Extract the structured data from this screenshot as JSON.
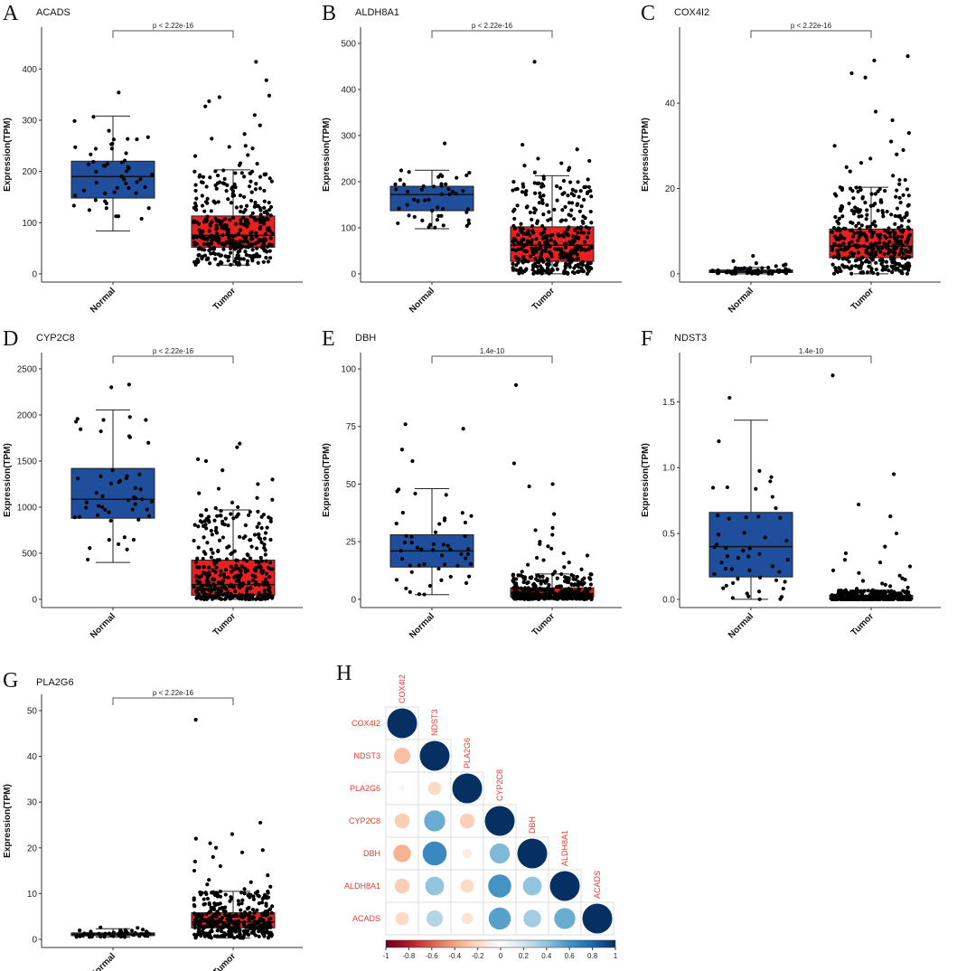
{
  "chart_data": [
    {
      "panel": "A",
      "type": "box",
      "title": "ACADS",
      "ylabel": "Expression(TPM)",
      "categories": [
        "Normal",
        "Tumor"
      ],
      "ylim": [
        0,
        450
      ],
      "yticks": [
        0,
        100,
        200,
        300,
        400
      ],
      "p_label": "p < 2.22e-16",
      "boxes": [
        {
          "group": "Normal",
          "whisker_low": 84,
          "q1": 148,
          "median": 190,
          "q3": 220,
          "whisker_high": 308,
          "outliers": [
            354
          ]
        },
        {
          "group": "Tumor",
          "whisker_low": 17,
          "q1": 52,
          "median": 75,
          "q3": 113,
          "whisker_high": 203,
          "outliers": [
            414,
            378,
            345,
            337,
            327,
            310,
            348,
            290,
            273,
            264,
            250,
            248,
            245,
            232,
            230,
            216,
            215,
            212
          ]
        }
      ]
    },
    {
      "panel": "B",
      "type": "box",
      "title": "ALDH8A1",
      "ylabel": "Expression(TPM)",
      "categories": [
        "Normal",
        "Tumor"
      ],
      "ylim": [
        0,
        500
      ],
      "yticks": [
        0,
        100,
        200,
        300,
        400,
        500
      ],
      "p_label": "p < 2.22e-16",
      "boxes": [
        {
          "group": "Normal",
          "whisker_low": 98,
          "q1": 137,
          "median": 172,
          "q3": 190,
          "whisker_high": 225,
          "outliers": [
            283
          ]
        },
        {
          "group": "Tumor",
          "whisker_low": 0,
          "q1": 27,
          "median": 62,
          "q3": 102,
          "whisker_high": 213,
          "outliers": [
            460,
            280,
            270,
            250,
            245,
            240,
            235,
            230,
            225,
            220
          ]
        }
      ]
    },
    {
      "panel": "C",
      "type": "box",
      "title": "COX4I2",
      "ylabel": "Expression(TPM)",
      "categories": [
        "Normal",
        "Tumor"
      ],
      "ylim": [
        0,
        54
      ],
      "yticks": [
        0,
        20,
        40
      ],
      "p_label": "p < 2.22e-16",
      "boxes": [
        {
          "group": "Normal",
          "whisker_low": 0,
          "q1": 0.3,
          "median": 0.6,
          "q3": 0.9,
          "whisker_high": 1.5,
          "outliers": [
            4.2,
            3,
            2.5,
            2.2,
            2,
            1.8
          ]
        },
        {
          "group": "Tumor",
          "whisker_low": 0,
          "q1": 3.8,
          "median": 6.5,
          "q3": 10.5,
          "whisker_high": 20.3,
          "outliers": [
            51,
            50,
            47,
            46,
            38,
            36,
            33,
            31,
            30,
            29,
            28,
            27,
            26,
            25,
            24,
            23,
            22,
            22,
            21
          ]
        }
      ]
    },
    {
      "panel": "D",
      "type": "box",
      "title": "CYP2C8",
      "ylabel": "Expression(TPM)",
      "categories": [
        "Normal",
        "Tumor"
      ],
      "ylim": [
        0,
        2500
      ],
      "yticks": [
        0,
        500,
        1000,
        1500,
        2000,
        2500
      ],
      "p_label": "p < 2.22e-16",
      "boxes": [
        {
          "group": "Normal",
          "whisker_low": 400,
          "q1": 880,
          "median": 1085,
          "q3": 1420,
          "whisker_high": 2055,
          "outliers": [
            2330,
            2300
          ]
        },
        {
          "group": "Tumor",
          "whisker_low": 0,
          "q1": 45,
          "median": 160,
          "q3": 425,
          "whisker_high": 970,
          "outliers": [
            1690,
            1650,
            1520,
            1500,
            1400,
            1300,
            1250,
            1200,
            1150,
            1100,
            1080,
            1050,
            1000,
            990
          ]
        }
      ]
    },
    {
      "panel": "E",
      "type": "box",
      "title": "DBH",
      "ylabel": "Expression(TPM)",
      "categories": [
        "Normal",
        "Tumor"
      ],
      "ylim": [
        0,
        100
      ],
      "yticks": [
        0,
        25,
        50,
        75,
        100
      ],
      "p_label": "1.4e-10",
      "boxes": [
        {
          "group": "Normal",
          "whisker_low": 2,
          "q1": 14,
          "median": 21,
          "q3": 28,
          "whisker_high": 48,
          "outliers": [
            76,
            74,
            65,
            60
          ]
        },
        {
          "group": "Tumor",
          "whisker_low": 0,
          "q1": 1,
          "median": 2.5,
          "q3": 5,
          "whisker_high": 11,
          "outliers": [
            93,
            59,
            50,
            49,
            37,
            31,
            30,
            28,
            25,
            24,
            23,
            22,
            20,
            19,
            18,
            17,
            16,
            15,
            14,
            13,
            12,
            12
          ]
        }
      ]
    },
    {
      "panel": "F",
      "type": "box",
      "title": "NDST3",
      "ylabel": "Expression(TPM)",
      "categories": [
        "Normal",
        "Tumor"
      ],
      "ylim": [
        0,
        1.75
      ],
      "yticks": [
        0.0,
        0.5,
        1.0,
        1.5
      ],
      "ytick_labels": [
        "0.0",
        "0.5",
        "1.0",
        "1.5"
      ],
      "p_label": "1.4e-10",
      "boxes": [
        {
          "group": "Normal",
          "whisker_low": 0,
          "q1": 0.17,
          "median": 0.4,
          "q3": 0.66,
          "whisker_high": 1.36,
          "outliers": [
            1.53
          ]
        },
        {
          "group": "Tumor",
          "whisker_low": 0,
          "q1": 0,
          "median": 0.01,
          "q3": 0.03,
          "whisker_high": 0.07,
          "outliers": [
            1.7,
            0.95,
            0.72,
            0.63,
            0.5,
            0.4,
            0.35,
            0.3,
            0.28,
            0.25,
            0.22,
            0.2,
            0.18,
            0.16,
            0.15,
            0.14,
            0.12,
            0.11,
            0.1,
            0.09,
            0.08
          ]
        }
      ]
    },
    {
      "panel": "G",
      "type": "box",
      "title": "PLA2G6",
      "ylabel": "Expression(TPM)",
      "categories": [
        "Normal",
        "Tumor"
      ],
      "ylim": [
        0,
        50
      ],
      "yticks": [
        0,
        10,
        20,
        30,
        40,
        50
      ],
      "p_label": "p < 2.22e-16",
      "boxes": [
        {
          "group": "Normal",
          "whisker_low": 0.5,
          "q1": 0.8,
          "median": 1.1,
          "q3": 1.4,
          "whisker_high": 2.3,
          "outliers": [
            2.6,
            2.5
          ]
        },
        {
          "group": "Tumor",
          "whisker_low": 0.3,
          "q1": 2.5,
          "median": 3.8,
          "q3": 5.8,
          "whisker_high": 10.5,
          "outliers": [
            48,
            25.5,
            23,
            22,
            21,
            20,
            19.5,
            19,
            18,
            17,
            16,
            15,
            14,
            13,
            12.5,
            12,
            11.5,
            11
          ]
        }
      ]
    },
    {
      "panel": "H",
      "type": "heatmap",
      "subtype": "correlation-lower-triangle",
      "labels": [
        "COX4I2",
        "NDST3",
        "PLA2G6",
        "CYP2C8",
        "DBH",
        "ALDH8A1",
        "ACADS"
      ],
      "matrix": [
        [
          1
        ],
        [
          -0.3,
          1
        ],
        [
          0.05,
          -0.2,
          1
        ],
        [
          -0.25,
          0.5,
          -0.25,
          1
        ],
        [
          -0.35,
          0.65,
          -0.1,
          0.45,
          1
        ],
        [
          -0.25,
          0.4,
          -0.2,
          0.6,
          0.4,
          1
        ],
        [
          -0.2,
          0.3,
          -0.15,
          0.55,
          0.35,
          0.5,
          1
        ]
      ],
      "colorbar": {
        "range": [
          -1,
          1
        ],
        "ticks": [
          "-1",
          "-0.8",
          "-0.6",
          "-0.4",
          "-0.2",
          "0",
          "0.2",
          "0.4",
          "0.6",
          "0.8",
          "1"
        ]
      }
    }
  ],
  "colors": {
    "normal": "#1F4E9C",
    "tumor": "#E8201F",
    "label_red": "#F03A2A"
  }
}
